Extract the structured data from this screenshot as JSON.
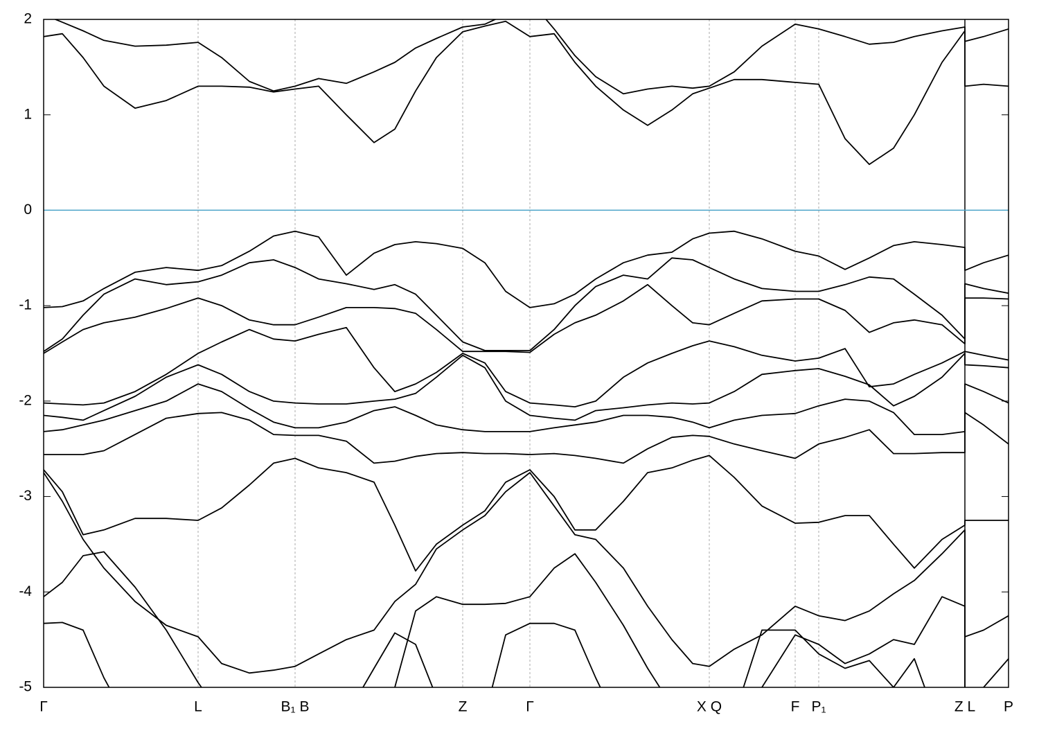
{
  "chart_data": {
    "type": "line",
    "x": [
      0,
      0.27,
      0.57,
      0.87,
      1.32,
      1.77,
      2.23,
      2.57,
      2.97,
      3.32,
      3.63,
      3.97,
      4.37,
      4.77,
      5.07,
      5.37,
      5.67,
      6.05,
      6.37,
      6.67,
      7.02,
      7.37,
      7.67,
      7.97,
      8.37,
      8.72,
      9.07,
      9.37,
      9.61,
      9.97,
      10.37,
      10.85,
      11.19,
      11.57,
      11.92,
      12.27,
      12.57,
      12.97,
      13.3,
      13.3,
      13.57,
      13.93
    ],
    "xlim": [
      0,
      13.93
    ],
    "xticks": [
      {
        "value": 0,
        "label": "Γ"
      },
      {
        "value": 2.23,
        "label": "L"
      },
      {
        "value": 3.63,
        "label": "B₁ B"
      },
      {
        "value": 6.05,
        "label": "Z"
      },
      {
        "value": 7.02,
        "label": "Γ"
      },
      {
        "value": 9.61,
        "label": "X Q"
      },
      {
        "value": 10.85,
        "label": "F"
      },
      {
        "value": 11.19,
        "label": "P₁"
      },
      {
        "value": 13.3,
        "label": "Z L"
      },
      {
        "value": 13.93,
        "label": "P"
      }
    ],
    "discontinuities": [
      13.3
    ],
    "ylim": [
      -5,
      2
    ],
    "yticks": [
      -5,
      -4,
      -3,
      -2,
      -1,
      0,
      1,
      2
    ],
    "xgrid": true,
    "fermi_level": {
      "value": 0,
      "color": "#4aa3c8"
    },
    "series": [
      {
        "color": "#000000",
        "values": [
          1.82,
          1.85,
          1.6,
          1.3,
          1.07,
          1.15,
          1.3,
          1.3,
          1.29,
          1.24,
          1.27,
          1.3,
          1.0,
          0.71,
          0.85,
          1.25,
          1.6,
          1.87,
          1.93,
          1.98,
          1.82,
          1.85,
          1.55,
          1.3,
          1.05,
          0.89,
          1.05,
          1.22,
          1.28,
          1.37,
          1.37,
          1.34,
          1.32,
          0.75,
          0.48,
          0.65,
          1.0,
          1.55,
          1.88,
          1.3,
          1.32,
          1.3
        ]
      },
      {
        "color": "#000000",
        "values": [
          2.05,
          1.97,
          1.88,
          1.78,
          1.72,
          1.73,
          1.76,
          1.6,
          1.35,
          1.25,
          1.3,
          1.38,
          1.33,
          1.45,
          1.55,
          1.7,
          1.8,
          1.92,
          1.95,
          2.05,
          2.2,
          1.9,
          1.62,
          1.4,
          1.22,
          1.27,
          1.3,
          1.28,
          1.3,
          1.45,
          1.72,
          1.95,
          1.9,
          1.82,
          1.74,
          1.76,
          1.82,
          1.88,
          1.92,
          1.77,
          1.82,
          1.9
        ]
      },
      {
        "color": "#000000",
        "values": [
          -1.02,
          -1.01,
          -0.95,
          -0.82,
          -0.65,
          -0.6,
          -0.63,
          -0.58,
          -0.43,
          -0.27,
          -0.22,
          -0.28,
          -0.68,
          -0.45,
          -0.36,
          -0.33,
          -0.35,
          -0.4,
          -0.55,
          -0.85,
          -1.02,
          -0.98,
          -0.88,
          -0.72,
          -0.55,
          -0.47,
          -0.44,
          -0.3,
          -0.24,
          -0.22,
          -0.3,
          -0.43,
          -0.48,
          -0.62,
          -0.5,
          -0.37,
          -0.33,
          -0.36,
          -0.39,
          -0.63,
          -0.55,
          -0.47
        ]
      },
      {
        "color": "#000000",
        "values": [
          -1.48,
          -1.35,
          -1.1,
          -0.88,
          -0.72,
          -0.78,
          -0.75,
          -0.68,
          -0.55,
          -0.52,
          -0.6,
          -0.72,
          -0.77,
          -0.83,
          -0.78,
          -0.88,
          -1.1,
          -1.38,
          -1.47,
          -1.47,
          -1.47,
          -1.25,
          -1.0,
          -0.8,
          -0.68,
          -0.72,
          -0.5,
          -0.52,
          -0.6,
          -0.72,
          -0.82,
          -0.85,
          -0.85,
          -0.78,
          -0.7,
          -0.72,
          -0.88,
          -1.1,
          -1.35,
          -0.77,
          -0.82,
          -0.87
        ]
      },
      {
        "color": "#000000",
        "values": [
          -1.5,
          -1.38,
          -1.25,
          -1.18,
          -1.12,
          -1.03,
          -0.92,
          -1.0,
          -1.15,
          -1.2,
          -1.2,
          -1.12,
          -1.02,
          -1.02,
          -1.03,
          -1.08,
          -1.25,
          -1.48,
          -1.48,
          -1.48,
          -1.49,
          -1.3,
          -1.18,
          -1.1,
          -0.95,
          -0.78,
          -1.0,
          -1.18,
          -1.2,
          -1.08,
          -0.95,
          -0.93,
          -0.93,
          -1.05,
          -1.28,
          -1.18,
          -1.15,
          -1.2,
          -1.4,
          -0.92,
          -0.92,
          -0.93
        ]
      },
      {
        "color": "#000000",
        "values": [
          -2.02,
          -2.03,
          -2.04,
          -2.02,
          -1.9,
          -1.72,
          -1.5,
          -1.38,
          -1.25,
          -1.35,
          -1.37,
          -1.3,
          -1.23,
          -1.65,
          -1.9,
          -1.82,
          -1.7,
          -1.5,
          -1.6,
          -1.9,
          -2.02,
          -2.04,
          -2.06,
          -2.0,
          -1.75,
          -1.6,
          -1.5,
          -1.42,
          -1.37,
          -1.43,
          -1.52,
          -1.58,
          -1.55,
          -1.45,
          -1.85,
          -1.82,
          -1.72,
          -1.6,
          -1.48,
          -1.48,
          -1.52,
          -1.57
        ]
      },
      {
        "color": "#000000",
        "values": [
          -2.15,
          -2.17,
          -2.2,
          -2.1,
          -1.95,
          -1.75,
          -1.62,
          -1.72,
          -1.9,
          -2.0,
          -2.02,
          -2.03,
          -2.03,
          -2.0,
          -1.98,
          -1.92,
          -1.75,
          -1.52,
          -1.65,
          -2.0,
          -2.15,
          -2.18,
          -2.2,
          -2.1,
          -2.07,
          -2.04,
          -2.02,
          -2.03,
          -2.02,
          -1.9,
          -1.72,
          -1.68,
          -1.66,
          -1.74,
          -1.83,
          -2.05,
          -1.95,
          -1.75,
          -1.5,
          -1.62,
          -1.63,
          -1.65
        ]
      },
      {
        "color": "#000000",
        "values": [
          -2.32,
          -2.3,
          -2.25,
          -2.2,
          -2.1,
          -2.0,
          -1.82,
          -1.9,
          -2.08,
          -2.22,
          -2.28,
          -2.28,
          -2.22,
          -2.1,
          -2.06,
          -2.15,
          -2.25,
          -2.3,
          -2.32,
          -2.32,
          -2.32,
          -2.28,
          -2.25,
          -2.22,
          -2.15,
          -2.15,
          -2.17,
          -2.22,
          -2.28,
          -2.2,
          -2.15,
          -2.13,
          -2.05,
          -1.98,
          -2.0,
          -2.12,
          -2.35,
          -2.35,
          -2.32,
          -1.82,
          -1.9,
          -2.02
        ]
      },
      {
        "color": "#000000",
        "values": [
          -2.56,
          -2.56,
          -2.56,
          -2.52,
          -2.35,
          -2.18,
          -2.13,
          -2.12,
          -2.2,
          -2.35,
          -2.36,
          -2.36,
          -2.42,
          -2.65,
          -2.63,
          -2.58,
          -2.55,
          -2.54,
          -2.55,
          -2.55,
          -2.56,
          -2.55,
          -2.57,
          -2.6,
          -2.65,
          -2.5,
          -2.38,
          -2.36,
          -2.37,
          -2.45,
          -2.52,
          -2.6,
          -2.45,
          -2.38,
          -2.3,
          -2.55,
          -2.55,
          -2.54,
          -2.54,
          -2.12,
          -2.25,
          -2.45
        ]
      },
      {
        "color": "#000000",
        "values": [
          -2.72,
          -2.95,
          -3.4,
          -3.35,
          -3.23,
          -3.23,
          -3.25,
          -3.12,
          -2.88,
          -2.65,
          -2.6,
          -2.7,
          -2.75,
          -2.85,
          -3.3,
          -3.78,
          -3.5,
          -3.3,
          -3.15,
          -2.85,
          -2.72,
          -3.0,
          -3.35,
          -3.35,
          -3.05,
          -2.75,
          -2.7,
          -2.62,
          -2.57,
          -2.8,
          -3.1,
          -3.28,
          -3.27,
          -3.2,
          -3.2,
          -3.5,
          -3.75,
          -3.45,
          -3.3,
          -3.25,
          -3.25,
          -3.25
        ]
      },
      {
        "color": "#000000",
        "values": [
          -2.75,
          -3.05,
          -3.45,
          -3.75,
          -4.1,
          -4.35,
          -4.47,
          -4.75,
          -4.85,
          -4.82,
          -4.78,
          -4.65,
          -4.5,
          -4.4,
          -4.1,
          -3.92,
          -3.55,
          -3.35,
          -3.2,
          -2.95,
          -2.75,
          -3.1,
          -3.4,
          -3.45,
          -3.75,
          -4.15,
          -4.5,
          -4.75,
          -4.78,
          -4.6,
          -4.45,
          -4.15,
          -4.25,
          -4.3,
          -4.2,
          -4.02,
          -3.88,
          -3.6,
          -3.35,
          -4.47,
          -4.4,
          -4.25
        ]
      },
      {
        "color": "#000000",
        "values": [
          -4.05,
          -3.9,
          -3.62,
          -3.58,
          -3.95,
          -4.4,
          -4.95,
          -5.3,
          -5.5,
          -5.5,
          -5.5,
          -5.5,
          -5.3,
          -4.8,
          -4.43,
          -4.55,
          -5.1,
          -5.5,
          -5.3,
          -4.45,
          -4.33,
          -4.33,
          -4.4,
          -4.9,
          -5.5,
          -5.5,
          -5.5,
          -5.5,
          -5.5,
          -5.3,
          -4.4,
          -4.4,
          -4.65,
          -4.8,
          -4.72,
          -5.0,
          -4.7,
          -5.5,
          -5.5,
          -5.5,
          -5.5,
          -5.5
        ]
      },
      {
        "color": "#000000",
        "values": [
          -4.33,
          -4.32,
          -4.4,
          -4.9,
          -5.5,
          -5.5,
          -5.5,
          -5.5,
          -5.5,
          -5.5,
          -5.5,
          -5.5,
          -5.5,
          -5.5,
          -5.0,
          -4.2,
          -4.05,
          -4.13,
          -4.13,
          -4.12,
          -4.05,
          -3.75,
          -3.6,
          -3.9,
          -4.35,
          -4.8,
          -5.2,
          -5.5,
          -5.5,
          -5.5,
          -5.0,
          -4.45,
          -4.55,
          -4.75,
          -4.65,
          -4.5,
          -4.55,
          -4.05,
          -4.15,
          -5.5,
          -5.0,
          -4.7
        ]
      }
    ]
  }
}
